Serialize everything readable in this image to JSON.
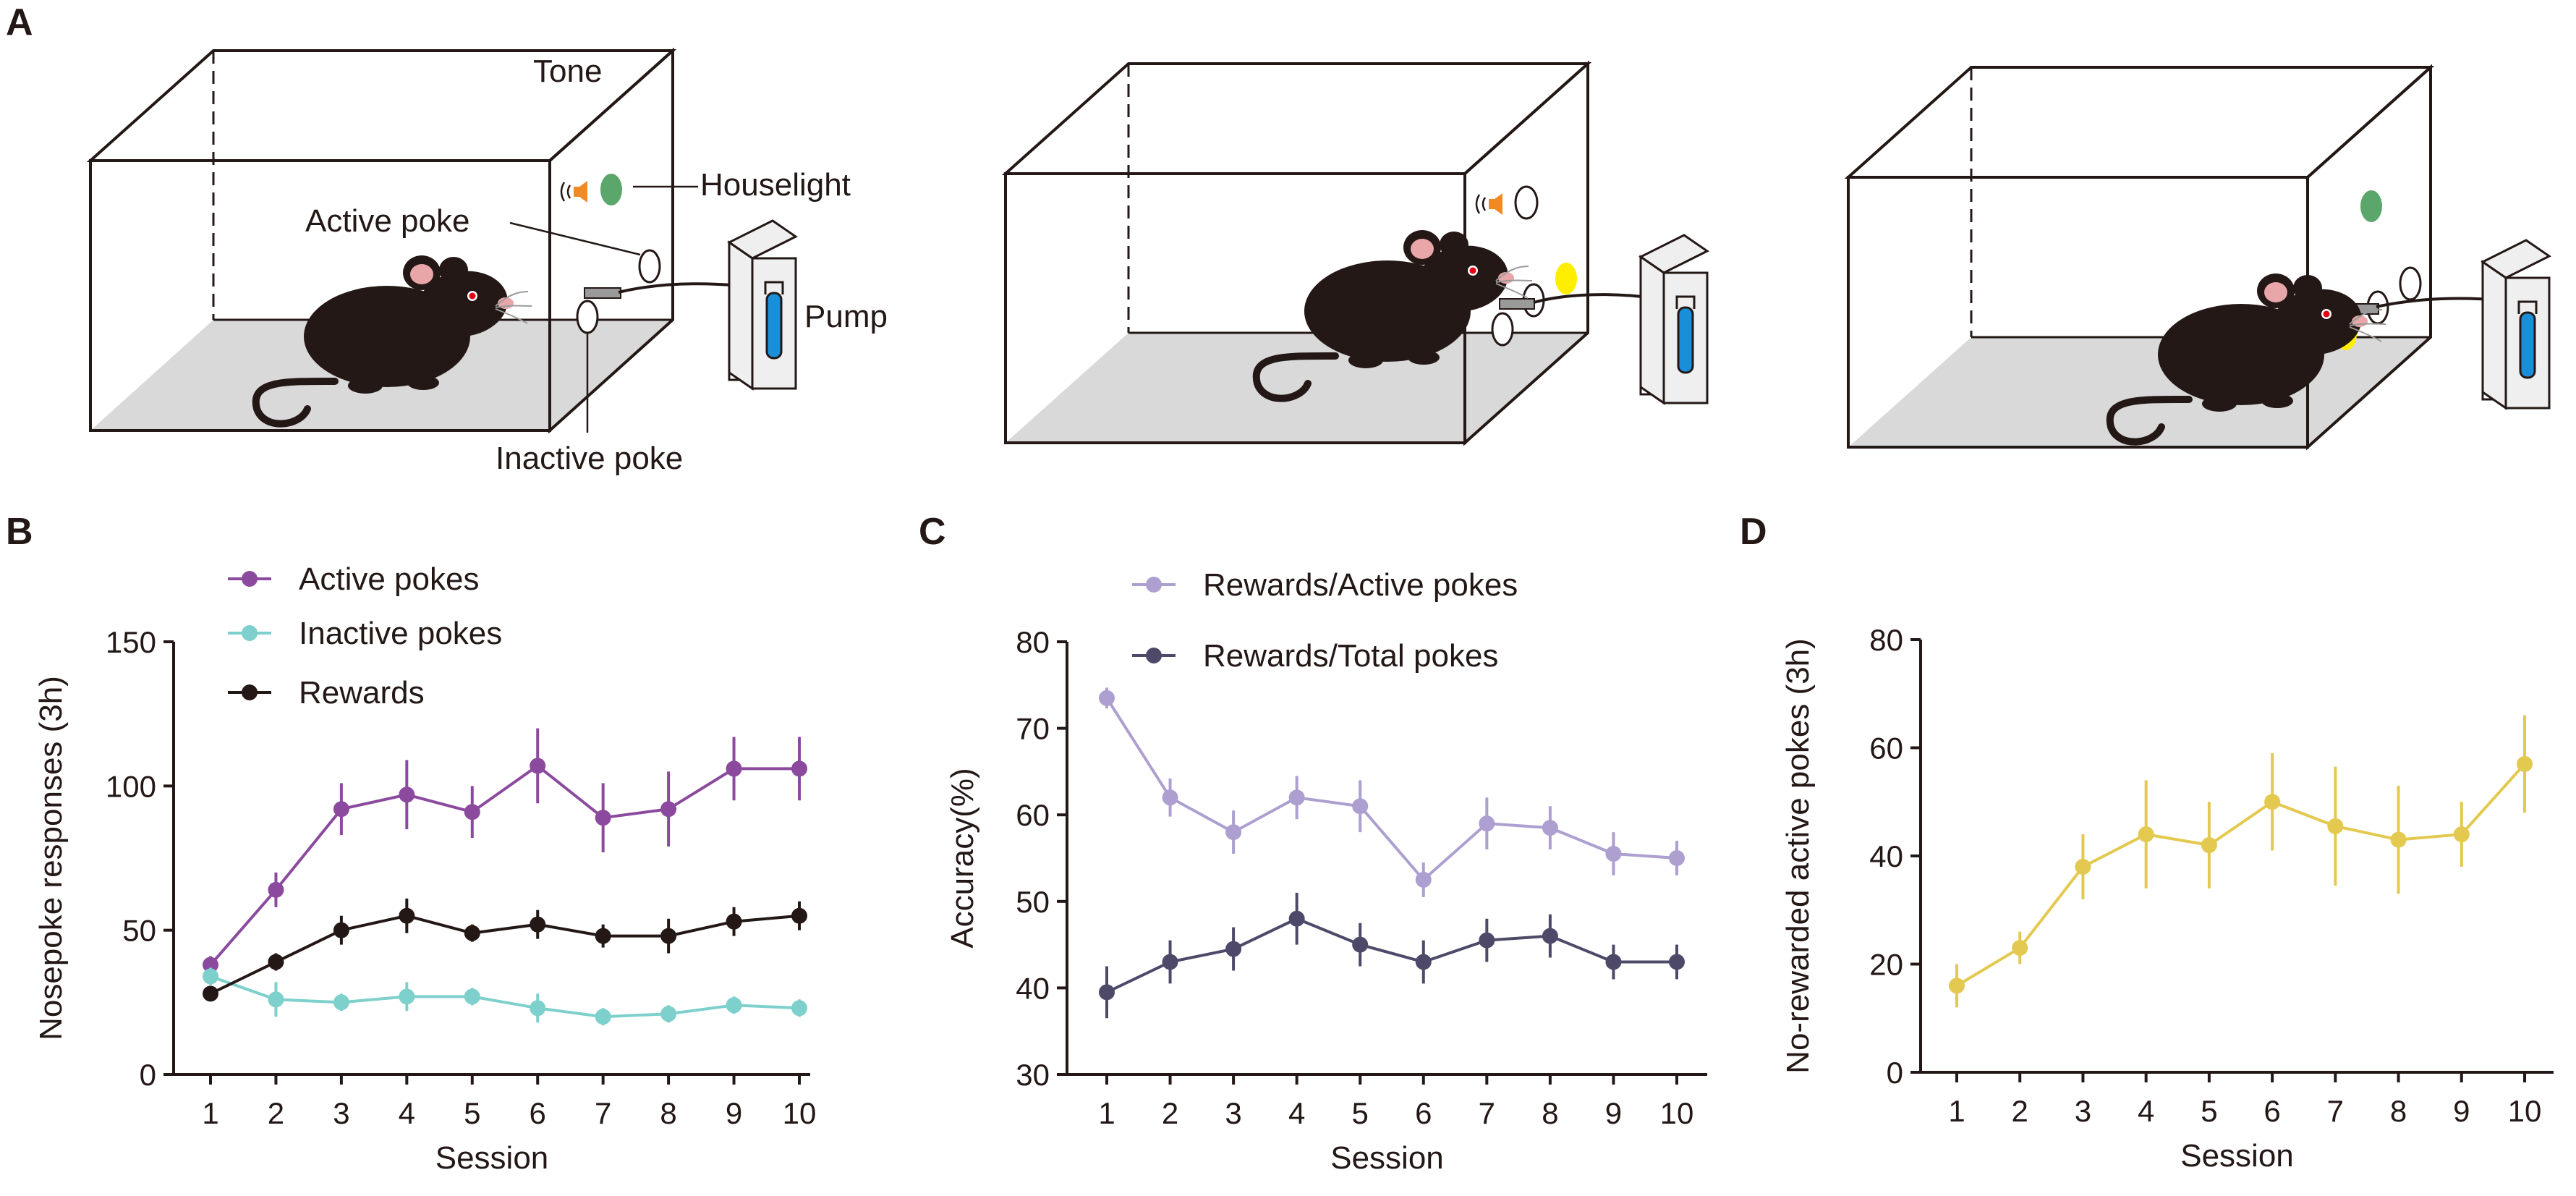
{
  "figure": {
    "panel_a": {
      "letter": "A",
      "labels": {
        "tone": "Tone",
        "houselight": "Houselight",
        "active_poke": "Active poke",
        "pump": "Pump",
        "inactive_poke": "Inactive poke"
      },
      "colors": {
        "floor": "#d9d9d9",
        "mouse": "#231815",
        "houselight": "#5aa66b",
        "cue_light": "#ffee00",
        "pump_tube": "#1a8fd9",
        "speaker": "#f08a24"
      }
    },
    "panel_b": {
      "letter": "B"
    },
    "panel_c": {
      "letter": "C"
    },
    "panel_d": {
      "letter": "D"
    }
  },
  "chart_data": [
    {
      "id": "B",
      "type": "line",
      "xlabel": "Session",
      "ylabel": "Nosepoke responses (3h)",
      "x": [
        1,
        2,
        3,
        4,
        5,
        6,
        7,
        8,
        9,
        10
      ],
      "xticks": [
        "1",
        "2",
        "3",
        "4",
        "5",
        "6",
        "7",
        "8",
        "9",
        "10"
      ],
      "ylim": [
        0,
        150
      ],
      "yticks": [
        "0",
        "50",
        "100",
        "150"
      ],
      "legend_position": "top-left",
      "series": [
        {
          "name": "Active pokes",
          "color": "#8b4a9e",
          "values": [
            38,
            64,
            92,
            97,
            91,
            107,
            89,
            92,
            106,
            106
          ],
          "errors": [
            3,
            6,
            9,
            12,
            9,
            13,
            12,
            13,
            11,
            11
          ]
        },
        {
          "name": "Inactive pokes",
          "color": "#7dd0cc",
          "values": [
            34,
            26,
            25,
            27,
            27,
            23,
            20,
            21,
            24,
            23
          ],
          "errors": [
            3,
            6,
            3,
            5,
            3,
            5,
            3,
            3,
            3,
            3
          ]
        },
        {
          "name": "Rewards",
          "color": "#231815",
          "values": [
            28,
            39,
            50,
            55,
            49,
            52,
            48,
            48,
            53,
            55
          ],
          "errors": [
            2,
            3,
            5,
            6,
            3,
            5,
            4,
            6,
            5,
            5
          ]
        }
      ]
    },
    {
      "id": "C",
      "type": "line",
      "xlabel": "Session",
      "ylabel": "Accuracy(%)",
      "x": [
        1,
        2,
        3,
        4,
        5,
        6,
        7,
        8,
        9,
        10
      ],
      "xticks": [
        "1",
        "2",
        "3",
        "4",
        "5",
        "6",
        "7",
        "8",
        "9",
        "10"
      ],
      "ylim": [
        30,
        80
      ],
      "yticks": [
        "30",
        "40",
        "50",
        "60",
        "70",
        "80"
      ],
      "legend_position": "top-right",
      "series": [
        {
          "name": "Rewards/Active pokes",
          "color": "#ad9fd0",
          "values": [
            73.5,
            62,
            58,
            62,
            61,
            52.5,
            59,
            58.5,
            55.5,
            55
          ],
          "errors": [
            1.2,
            2.2,
            2.5,
            2.5,
            3,
            2,
            3,
            2.5,
            2.5,
            2
          ]
        },
        {
          "name": "Rewards/Total pokes",
          "color": "#4d4a69",
          "values": [
            39.5,
            43,
            44.5,
            48,
            45,
            43,
            45.5,
            46,
            43,
            43
          ],
          "errors": [
            3,
            2.5,
            2.5,
            3,
            2.5,
            2.5,
            2.5,
            2.5,
            2,
            2
          ]
        }
      ]
    },
    {
      "id": "D",
      "type": "line",
      "xlabel": "Session",
      "ylabel": "No-rewarded active pokes (3h)",
      "x": [
        1,
        2,
        3,
        4,
        5,
        6,
        7,
        8,
        9,
        10
      ],
      "xticks": [
        "1",
        "2",
        "3",
        "4",
        "5",
        "6",
        "7",
        "8",
        "9",
        "10"
      ],
      "ylim": [
        0,
        80
      ],
      "yticks": [
        "0",
        "20",
        "40",
        "60",
        "80"
      ],
      "series": [
        {
          "name": "No-rewarded active pokes",
          "color": "#e3c94f",
          "values": [
            16,
            23,
            38,
            44,
            42,
            50,
            45.5,
            43,
            44,
            57
          ],
          "errors": [
            4,
            3,
            6,
            10,
            8,
            9,
            11,
            10,
            6,
            9
          ]
        }
      ]
    }
  ]
}
